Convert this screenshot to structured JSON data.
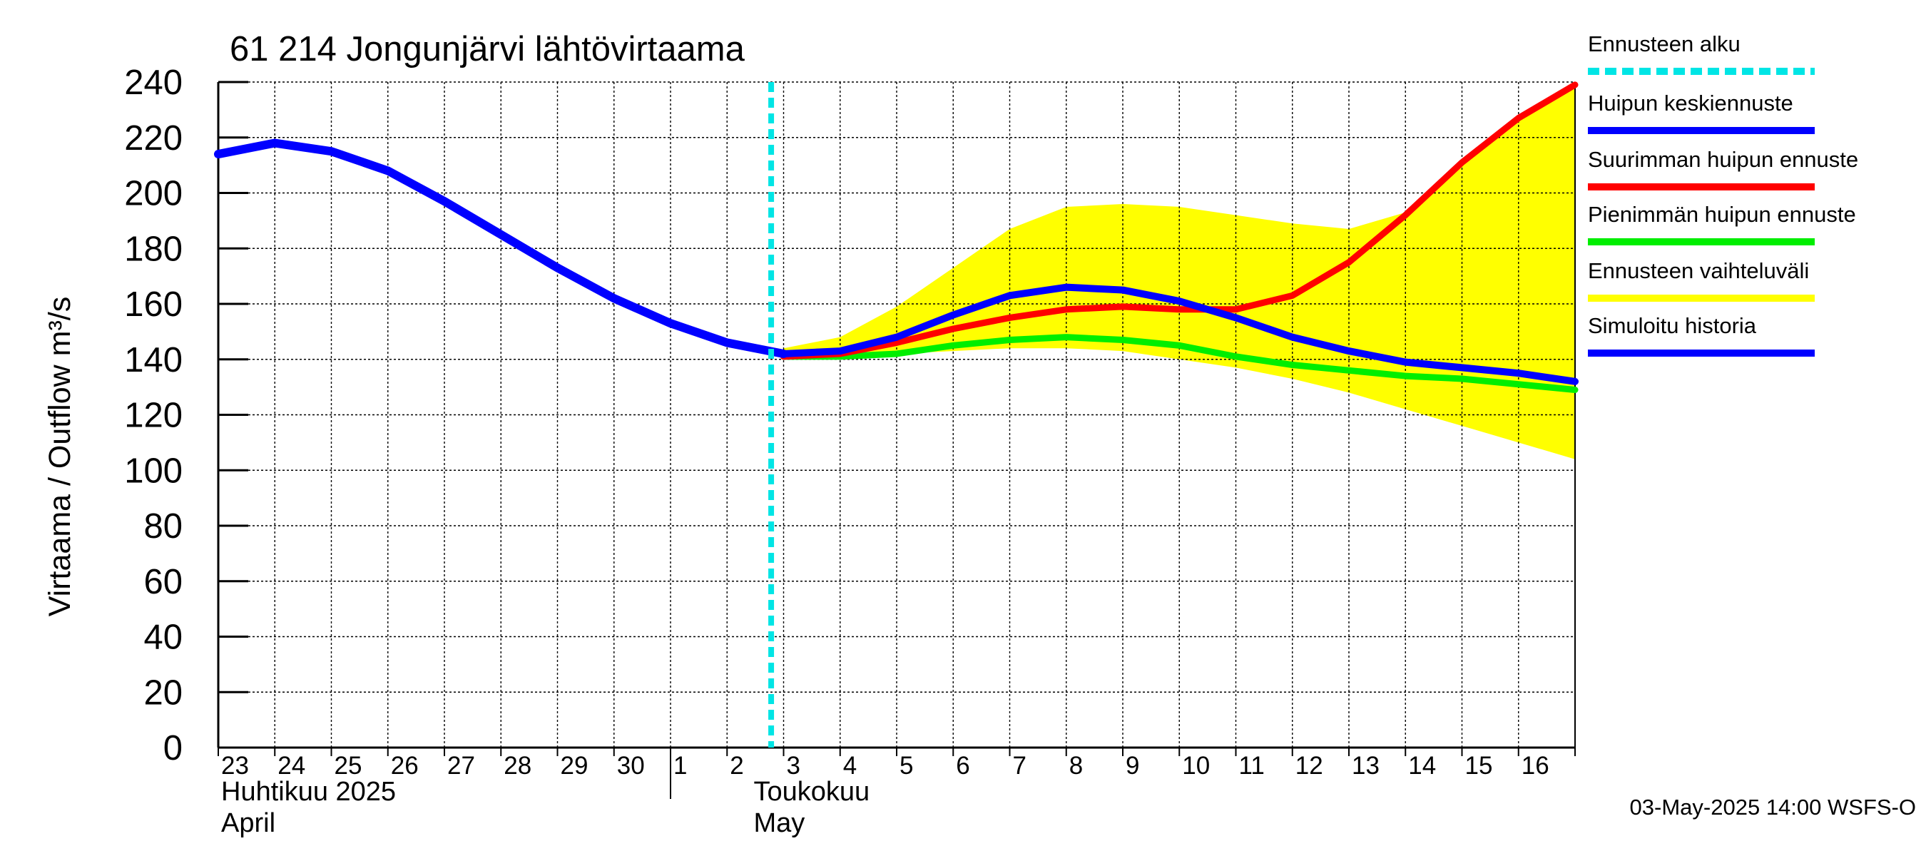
{
  "chart_data": {
    "type": "line",
    "title": "61 214 Jongunjärvi lähtövirtaama",
    "ylabel": "Virtaama / Outflow    m³/s",
    "ylim": [
      0,
      240
    ],
    "yticks": [
      0,
      20,
      40,
      60,
      80,
      100,
      120,
      140,
      160,
      180,
      200,
      220,
      240
    ],
    "xlim": [
      "2025-04-23",
      "2025-05-17"
    ],
    "xtick_labels": [
      "23",
      "24",
      "25",
      "26",
      "27",
      "28",
      "29",
      "30",
      "1",
      "2",
      "3",
      "4",
      "5",
      "6",
      "7",
      "8",
      "9",
      "10",
      "11",
      "12",
      "13",
      "14",
      "15",
      "16"
    ],
    "month_labels": [
      {
        "line1": "Huhtikuu  2025",
        "line2": "April"
      },
      {
        "line1": "Toukokuu",
        "line2": "May"
      }
    ],
    "grid": true,
    "legend_position": "right",
    "forecast_start": "2025-05-03",
    "series": [
      {
        "name": "Ennusteen vaihteluväli",
        "kind": "band",
        "color": "#ffff00",
        "x": [
          "2025-05-03",
          "2025-05-04",
          "2025-05-05",
          "2025-05-06",
          "2025-05-07",
          "2025-05-08",
          "2025-05-09",
          "2025-05-10",
          "2025-05-11",
          "2025-05-12",
          "2025-05-13",
          "2025-05-14",
          "2025-05-15",
          "2025-05-16",
          "2025-05-17"
        ],
        "upper": [
          144,
          148,
          159,
          173,
          187,
          195,
          196,
          195,
          192,
          189,
          187,
          193,
          210,
          226,
          239
        ],
        "lower": [
          141,
          141,
          142,
          143,
          144,
          144,
          143,
          140,
          137,
          133,
          128,
          122,
          116,
          110,
          104
        ]
      },
      {
        "name": "Simuloitu historia",
        "color": "#0000ff",
        "x": [
          "2025-04-23",
          "2025-04-24",
          "2025-04-25",
          "2025-04-26",
          "2025-04-27",
          "2025-04-28",
          "2025-04-29",
          "2025-04-30",
          "2025-05-01",
          "2025-05-02",
          "2025-05-03"
        ],
        "values": [
          214,
          218,
          215,
          208,
          197,
          185,
          173,
          162,
          153,
          146,
          142
        ]
      },
      {
        "name": "Suurimman huipun ennuste",
        "color": "#ff0000",
        "x": [
          "2025-05-03",
          "2025-05-04",
          "2025-05-05",
          "2025-05-06",
          "2025-05-07",
          "2025-05-08",
          "2025-05-09",
          "2025-05-10",
          "2025-05-11",
          "2025-05-12",
          "2025-05-13",
          "2025-05-14",
          "2025-05-15",
          "2025-05-16",
          "2025-05-17"
        ],
        "values": [
          141,
          142,
          146,
          151,
          155,
          158,
          159,
          158,
          158,
          163,
          175,
          192,
          211,
          227,
          239
        ]
      },
      {
        "name": "Pienimmän huipun ennuste",
        "color": "#00ee00",
        "x": [
          "2025-05-03",
          "2025-05-04",
          "2025-05-05",
          "2025-05-06",
          "2025-05-07",
          "2025-05-08",
          "2025-05-09",
          "2025-05-10",
          "2025-05-11",
          "2025-05-12",
          "2025-05-13",
          "2025-05-14",
          "2025-05-15",
          "2025-05-16",
          "2025-05-17"
        ],
        "values": [
          141,
          141,
          142,
          145,
          147,
          148,
          147,
          145,
          141,
          138,
          136,
          134,
          133,
          131,
          129
        ]
      },
      {
        "name": "Huipun keskiennuste",
        "color": "#0000ff",
        "x": [
          "2025-05-03",
          "2025-05-04",
          "2025-05-05",
          "2025-05-06",
          "2025-05-07",
          "2025-05-08",
          "2025-05-09",
          "2025-05-10",
          "2025-05-11",
          "2025-05-12",
          "2025-05-13",
          "2025-05-14",
          "2025-05-15",
          "2025-05-16",
          "2025-05-17"
        ],
        "values": [
          142,
          143,
          148,
          156,
          163,
          166,
          165,
          161,
          155,
          148,
          143,
          139,
          137,
          135,
          132
        ]
      }
    ],
    "legend": [
      {
        "label": "Ennusteen alku",
        "color": "#00e5e5",
        "style": "dashed"
      },
      {
        "label": "Huipun keskiennuste",
        "color": "#0000ff",
        "style": "solid"
      },
      {
        "label": "Suurimman huipun ennuste",
        "color": "#ff0000",
        "style": "solid"
      },
      {
        "label": "Pienimmän huipun ennuste",
        "color": "#00ee00",
        "style": "solid"
      },
      {
        "label": "Ennusteen vaihteluväli",
        "color": "#ffff00",
        "style": "solid"
      },
      {
        "label": "Simuloitu historia",
        "color": "#0000ff",
        "style": "solid"
      }
    ],
    "footer": "03-May-2025 14:00 WSFS-O"
  }
}
